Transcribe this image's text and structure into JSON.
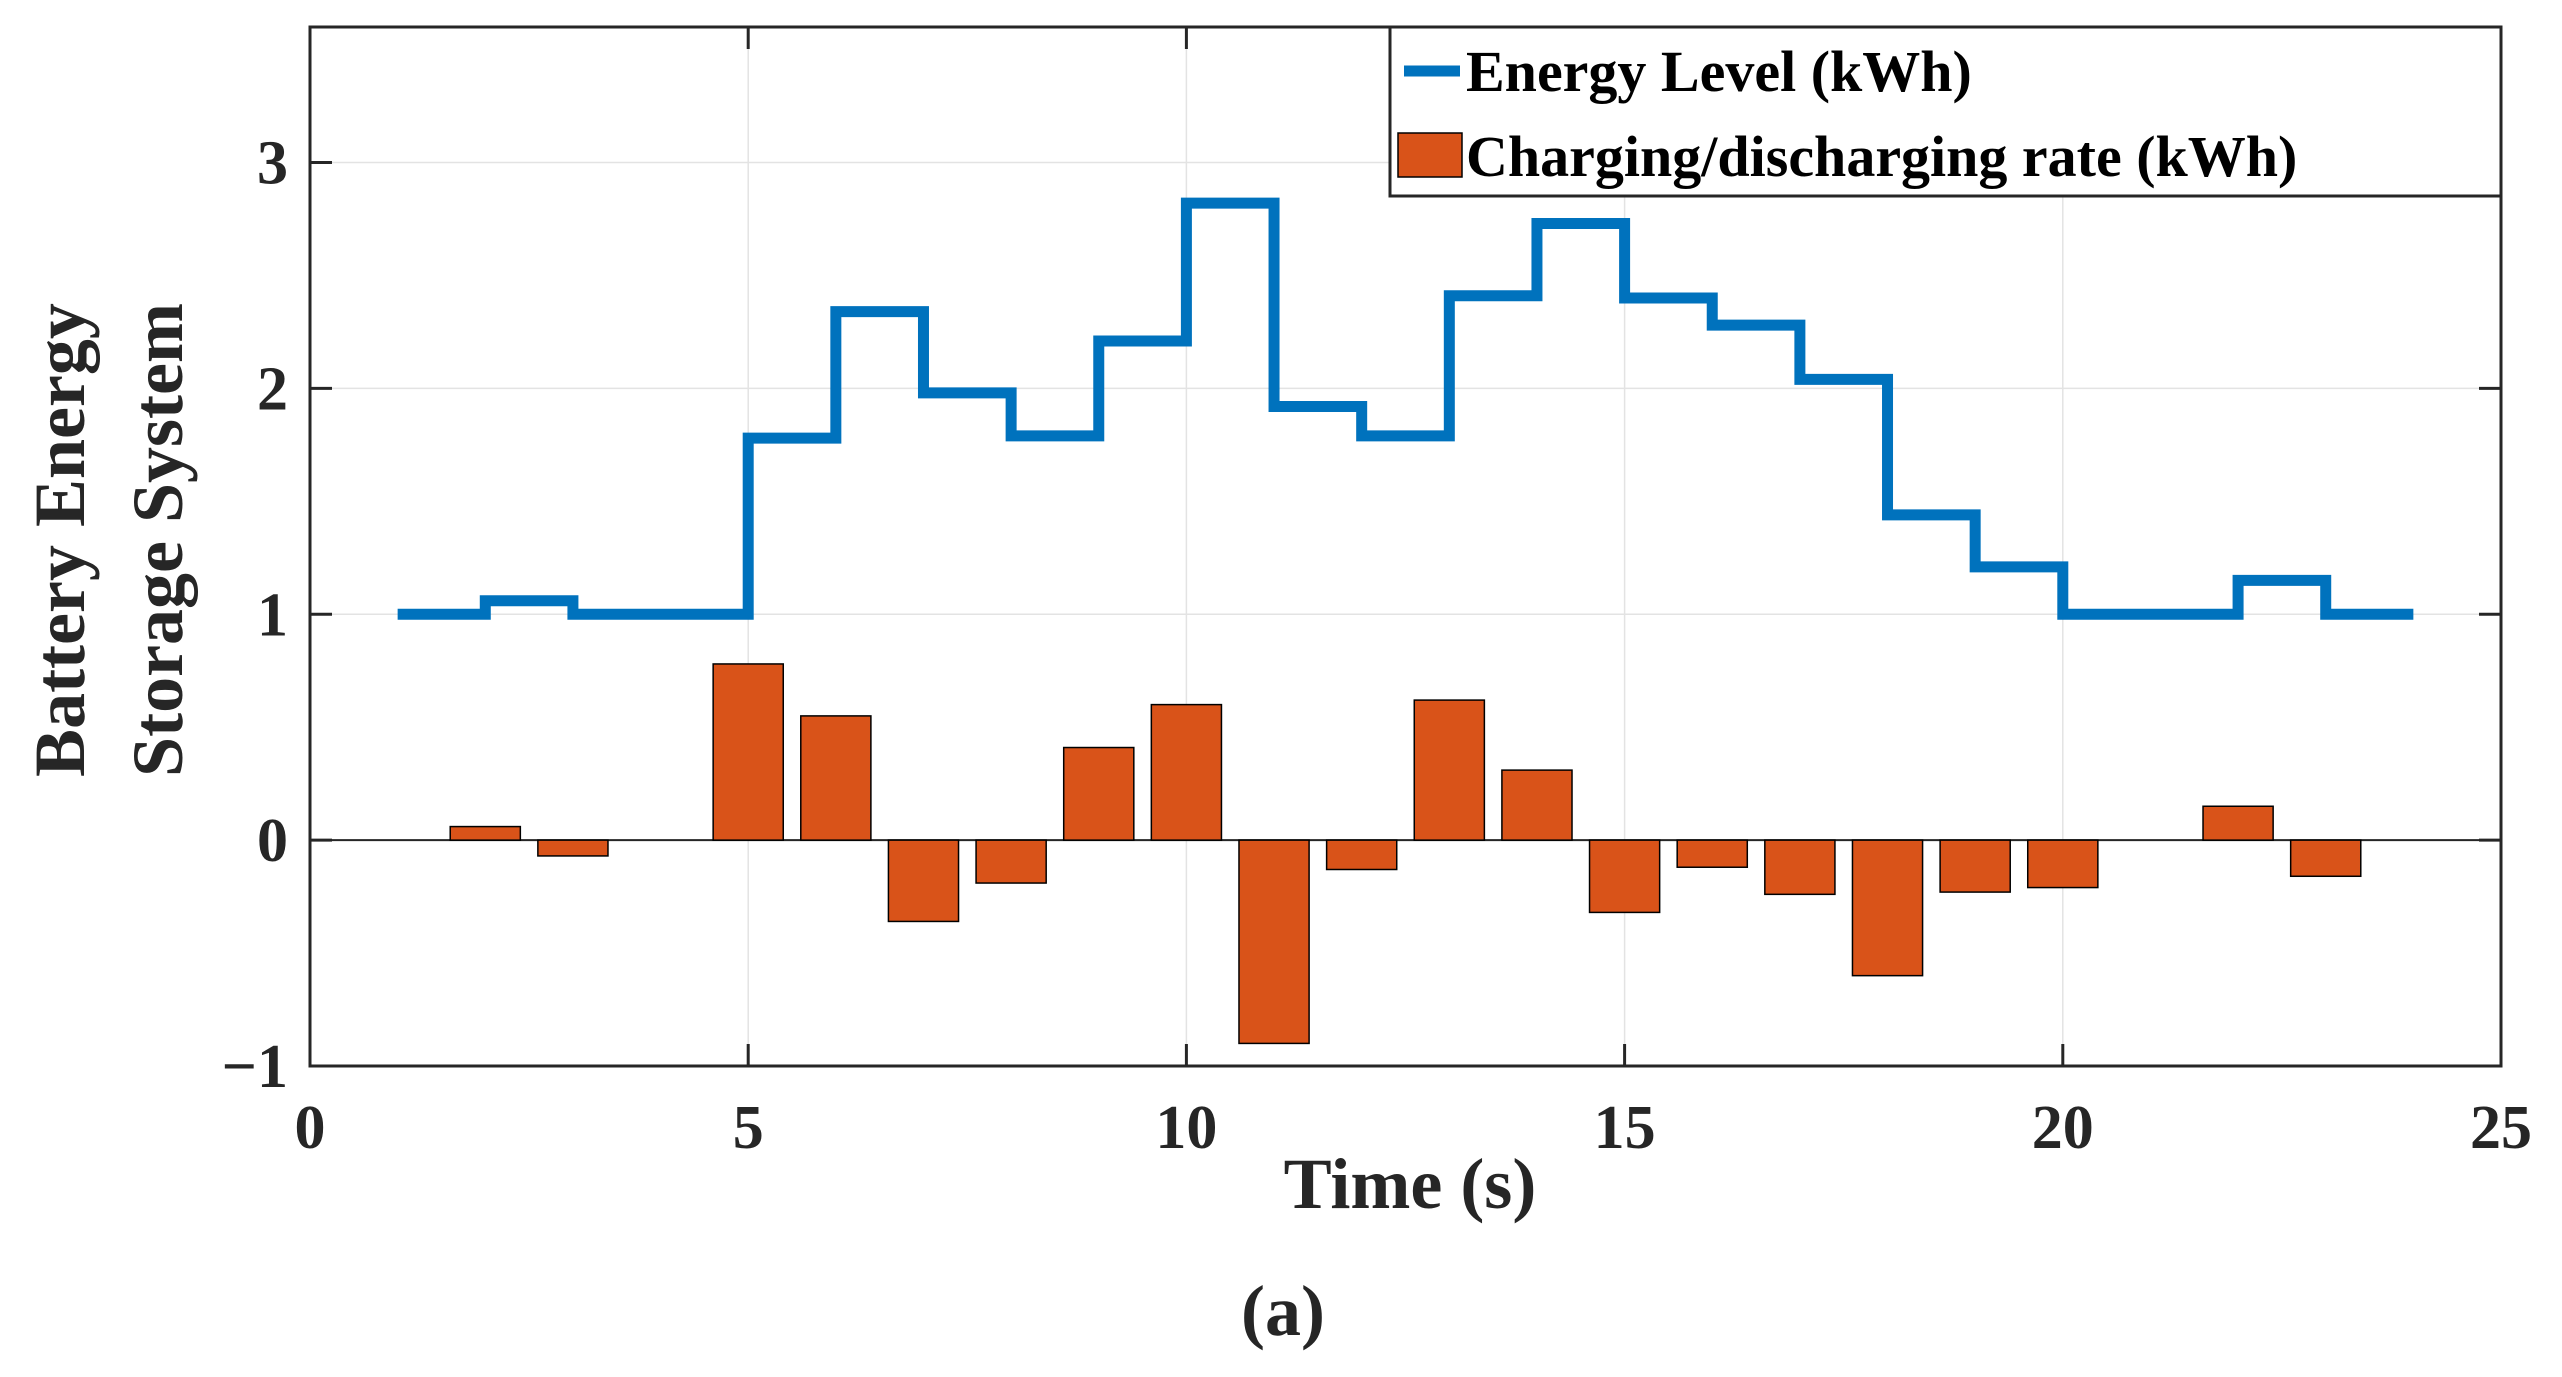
{
  "chart_data": {
    "type": "bar",
    "title": "",
    "xlabel": "Time (s)",
    "ylabel_lines": [
      "Battery Energy",
      "Storage System"
    ],
    "subcaption": "(a)",
    "xlim": [
      0,
      25
    ],
    "ylim": [
      -1,
      3.6
    ],
    "xticks": [
      0,
      5,
      10,
      15,
      20,
      25
    ],
    "xtick_labels": [
      "0",
      "5",
      "10",
      "15",
      "20",
      "25"
    ],
    "yticks": [
      -1,
      0,
      1,
      2,
      3
    ],
    "ytick_labels": [
      "−1",
      "0",
      "1",
      "2",
      "3"
    ],
    "grid": true,
    "legend_position": "top-right",
    "series": [
      {
        "name": "Energy Level (kWh)",
        "kind": "stairs",
        "color": "#0072BD",
        "x": [
          1,
          2,
          3,
          4,
          5,
          6,
          7,
          8,
          9,
          10,
          11,
          12,
          13,
          14,
          15,
          16,
          17,
          18,
          19,
          20,
          21,
          22,
          23,
          24
        ],
        "values": [
          1.0,
          1.06,
          1.0,
          1.0,
          1.78,
          2.34,
          1.98,
          1.79,
          2.21,
          2.82,
          1.92,
          1.79,
          2.41,
          2.73,
          2.4,
          2.28,
          2.04,
          1.44,
          1.21,
          1.0,
          1.0,
          1.15,
          1.0,
          1.0
        ]
      },
      {
        "name": "Charging/discharging rate (kWh)",
        "kind": "bar",
        "color": "#D95319",
        "x": [
          2,
          3,
          5,
          6,
          7,
          8,
          9,
          10,
          11,
          12,
          13,
          14,
          15,
          16,
          17,
          18,
          19,
          20,
          22,
          23
        ],
        "values": [
          0.06,
          -0.07,
          0.78,
          0.55,
          -0.36,
          -0.19,
          0.41,
          0.6,
          -0.9,
          -0.13,
          0.62,
          0.31,
          -0.32,
          -0.12,
          -0.24,
          -0.6,
          -0.23,
          -0.21,
          0.15,
          -0.16
        ]
      }
    ]
  }
}
